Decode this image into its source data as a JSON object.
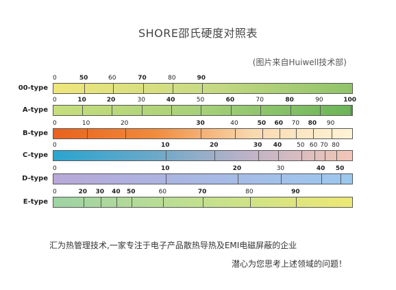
{
  "header": {
    "title": "SHORE邵氏硬度对照表",
    "subtitle": "(图片来自Huiwell技术部)"
  },
  "rows": [
    {
      "label": "00-type",
      "gradient": [
        "#f0e67a",
        "#c9db84",
        "#8fc36a"
      ],
      "ticks": [
        {
          "text": "0",
          "pos": 0,
          "bold": false
        },
        {
          "text": "50",
          "pos": 10.3,
          "bold": true
        },
        {
          "text": "60",
          "pos": 19.8,
          "bold": false
        },
        {
          "text": "70",
          "pos": 29.8,
          "bold": true
        },
        {
          "text": "80",
          "pos": 39.7,
          "bold": false
        },
        {
          "text": "90",
          "pos": 49.5,
          "bold": true
        }
      ]
    },
    {
      "label": "A-type",
      "gradient": [
        "#c7de7c",
        "#a6d07a",
        "#6bb457"
      ],
      "ticks": [
        {
          "text": "0",
          "pos": 0,
          "bold": false
        },
        {
          "text": "10",
          "pos": 9.7,
          "bold": true
        },
        {
          "text": "20",
          "pos": 19.4,
          "bold": true
        },
        {
          "text": "30",
          "pos": 29.5,
          "bold": false
        },
        {
          "text": "40",
          "pos": 39.3,
          "bold": true
        },
        {
          "text": "50",
          "pos": 49.2,
          "bold": false
        },
        {
          "text": "60",
          "pos": 59.1,
          "bold": true
        },
        {
          "text": "70",
          "pos": 69.0,
          "bold": false
        },
        {
          "text": "80",
          "pos": 78.9,
          "bold": true
        },
        {
          "text": "90",
          "pos": 88.8,
          "bold": false
        },
        {
          "text": "100",
          "pos": 99.0,
          "bold": true
        }
      ]
    },
    {
      "label": "B-type",
      "gradient": [
        "#e8621d",
        "#f08a3c",
        "#f8d9b0",
        "#fff4d6"
      ],
      "ticks": [
        {
          "text": "0",
          "pos": 0,
          "bold": false
        },
        {
          "text": "10",
          "pos": 11.1,
          "bold": false
        },
        {
          "text": "20",
          "pos": 23.9,
          "bold": false
        },
        {
          "text": "30",
          "pos": 49.2,
          "bold": true
        },
        {
          "text": "40",
          "pos": 60.5,
          "bold": false
        },
        {
          "text": "50",
          "pos": 69.6,
          "bold": true
        },
        {
          "text": "60",
          "pos": 75.3,
          "bold": true
        },
        {
          "text": "70",
          "pos": 80.9,
          "bold": false
        },
        {
          "text": "80",
          "pos": 86.5,
          "bold": true
        },
        {
          "text": "90",
          "pos": 92.6,
          "bold": false
        }
      ]
    },
    {
      "label": "C-type",
      "gradient": [
        "#2aa5cf",
        "#6aa8c9",
        "#c2b3c8",
        "#f3c6b6"
      ],
      "ticks": [
        {
          "text": "0",
          "pos": 0,
          "bold": false
        },
        {
          "text": "10",
          "pos": 37.5,
          "bold": true
        },
        {
          "text": "20",
          "pos": 53.7,
          "bold": true
        },
        {
          "text": "30",
          "pos": 68.3,
          "bold": true
        },
        {
          "text": "40",
          "pos": 74.9,
          "bold": true
        },
        {
          "text": "50",
          "pos": 82.6,
          "bold": false
        },
        {
          "text": "60",
          "pos": 86.9,
          "bold": false
        },
        {
          "text": "70",
          "pos": 90.4,
          "bold": false
        },
        {
          "text": "80",
          "pos": 94.3,
          "bold": false
        }
      ]
    },
    {
      "label": "D-type",
      "gradient": [
        "#b8a8d8",
        "#a8b8e4",
        "#9cc8ef"
      ],
      "ticks": [
        {
          "text": "0",
          "pos": 0,
          "bold": false
        },
        {
          "text": "10",
          "pos": 37.5,
          "bold": true
        },
        {
          "text": "20",
          "pos": 61.4,
          "bold": true
        },
        {
          "text": "30",
          "pos": 75.9,
          "bold": false
        },
        {
          "text": "40",
          "pos": 89.3,
          "bold": true
        },
        {
          "text": "50",
          "pos": 95.7,
          "bold": true
        }
      ]
    },
    {
      "label": "E-type",
      "gradient": [
        "#9ed3a4",
        "#c3e08e",
        "#eee874"
      ],
      "ticks": [
        {
          "text": "0",
          "pos": 0,
          "bold": false
        },
        {
          "text": "20",
          "pos": 10.0,
          "bold": true
        },
        {
          "text": "30",
          "pos": 15.7,
          "bold": true
        },
        {
          "text": "40",
          "pos": 21.1,
          "bold": true
        },
        {
          "text": "50",
          "pos": 26.1,
          "bold": true
        },
        {
          "text": "60",
          "pos": 36.6,
          "bold": false
        },
        {
          "text": "70",
          "pos": 49.8,
          "bold": true
        },
        {
          "text": "80",
          "pos": 65.5,
          "bold": false
        },
        {
          "text": "90",
          "pos": 80.9,
          "bold": true
        }
      ]
    }
  ],
  "footer": {
    "line1": "汇为热管理技术,一家专注于电子产品散热导热及EMI电磁屏蔽的企业",
    "line2": "潜心为您思考上述领域的问题！"
  }
}
